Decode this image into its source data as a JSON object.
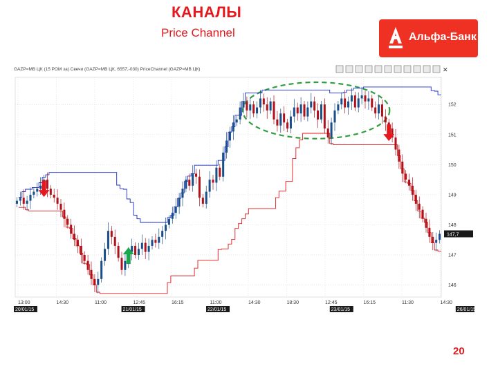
{
  "slide": {
    "title": "КАНАЛЫ",
    "subtitle": "Price Channel",
    "page_number": "20"
  },
  "logo": {
    "brand": "Альфа-Банк",
    "color": "#ef3124"
  },
  "colors": {
    "accent": "#e5191d",
    "up": "#1b4f8a",
    "down": "#b0121c",
    "channel_upper": "#1a2bc8",
    "channel_lower": "#e0181a",
    "highlight": "#2e9e3e"
  },
  "chart_data": {
    "type": "candlestick",
    "header_text": "GAZP=MB ЦК (15 РОМ за) Свечи (GAZP=MB ЦК, 6557,-030) PriceChannel (GAZP=MB ЦК)",
    "y_ticks": [
      "146",
      "147",
      "148",
      "149",
      "150",
      "151",
      "152"
    ],
    "ylim": [
      145.6,
      152.9
    ],
    "last_price_label": "147,7",
    "x_ticks": [
      "13:00",
      "14:30",
      "11:00",
      "12:45",
      "16:15",
      "11:00",
      "14:30",
      "18:30",
      "12:45",
      "16:15",
      "11:30",
      "14:30"
    ],
    "date_labels": [
      "20/01/15",
      "21/01/15",
      "22/01/15",
      "23/01/15",
      "26/01/15"
    ],
    "grid": true,
    "closes": [
      148.8,
      148.9,
      148.7,
      148.8,
      149.0,
      149.1,
      149.2,
      149.3,
      149.5,
      149.2,
      149.0,
      148.9,
      148.7,
      148.5,
      148.2,
      148.0,
      147.7,
      147.5,
      147.3,
      147.0,
      146.8,
      146.5,
      146.2,
      146.0,
      146.2,
      146.8,
      147.2,
      147.8,
      147.6,
      147.3,
      146.9,
      146.5,
      146.8,
      147.1,
      147.3,
      147.0,
      147.2,
      147.4,
      147.1,
      147.3,
      147.5,
      147.4,
      147.6,
      147.8,
      148.0,
      148.2,
      148.4,
      148.6,
      148.9,
      149.2,
      149.5,
      149.3,
      149.7,
      149.6,
      148.9,
      148.7,
      149.1,
      149.5,
      149.4,
      149.9,
      149.6,
      150.4,
      150.8,
      151.1,
      151.4,
      151.5,
      151.9,
      152.1,
      151.8,
      152.0,
      151.7,
      151.9,
      152.2,
      152.0,
      151.8,
      152.1,
      151.5,
      151.3,
      151.7,
      151.4,
      151.2,
      151.6,
      151.9,
      151.7,
      152.0,
      151.6,
      151.9,
      152.1,
      151.8,
      151.5,
      152.0,
      151.2,
      150.9,
      151.4,
      151.8,
      152.0,
      152.2,
      151.9,
      152.1,
      152.3,
      151.9,
      152.2,
      152.3,
      152.1,
      152.2,
      151.9,
      151.7,
      152.0,
      151.6,
      151.4,
      151.2,
      150.9,
      150.5,
      150.1,
      149.7,
      149.5,
      149.3,
      149.0,
      148.7,
      148.5,
      148.2,
      147.9,
      147.6,
      147.4,
      147.5,
      147.7
    ],
    "channel_period": 20,
    "arrows": [
      {
        "kind": "sell",
        "index": 8
      },
      {
        "kind": "buy",
        "index": 33
      },
      {
        "kind": "sell",
        "index": 110
      }
    ],
    "highlight_region": {
      "from_index": 68,
      "to_index": 109,
      "ymin": 151.0,
      "ymax": 152.6
    }
  }
}
